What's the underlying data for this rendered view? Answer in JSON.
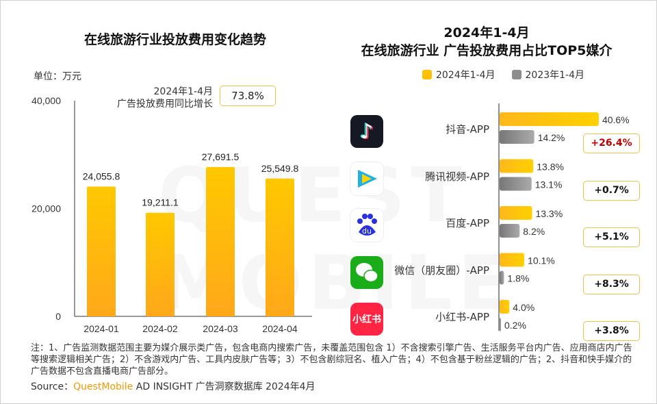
{
  "watermark": "QUEST MOBILE",
  "chart_data": [
    {
      "type": "bar",
      "title": "在线旅游行业投放费用变化趋势",
      "unit_label": "单位：万元",
      "categories": [
        "2024-01",
        "2024-02",
        "2024-03",
        "2024-04"
      ],
      "values": [
        24055.8,
        19211.1,
        27691.5,
        25549.8
      ],
      "value_labels": [
        "24,055.8",
        "19,211.1",
        "27,691.5",
        "25,549.8"
      ],
      "yticks": [
        "0",
        "20,000",
        "40,000"
      ],
      "ylim": [
        0,
        40000
      ],
      "annotation": {
        "label_line1": "2024年1-4月",
        "label_line2": "广告投放费用同比增长",
        "value": "73.8%"
      },
      "colors": {
        "bar": "#ffc000"
      }
    },
    {
      "type": "bar",
      "orientation": "horizontal",
      "title_line1": "2024年1-4月",
      "title_line2": "在线旅游行业 广告投放费用占比TOP5媒介",
      "legend": [
        "2024年1-4月",
        "2023年1-4月"
      ],
      "legend_position": "top",
      "categories": [
        "抖音-APP",
        "腾讯视频-APP",
        "百度-APP",
        "微信（朋友圈）-APP",
        "小红书-APP"
      ],
      "icons": [
        "douyin-icon",
        "tencent-video-icon",
        "baidu-icon",
        "wechat-icon",
        "xiaohongshu-icon"
      ],
      "series": [
        {
          "name": "2024年1-4月",
          "values": [
            40.6,
            13.8,
            13.3,
            10.1,
            4.0
          ],
          "labels": [
            "40.6%",
            "13.8%",
            "13.3%",
            "10.1%",
            "4.0%"
          ],
          "color": "#ffc000"
        },
        {
          "name": "2023年1-4月",
          "values": [
            14.2,
            13.1,
            8.2,
            1.8,
            0.2
          ],
          "labels": [
            "14.2%",
            "13.1%",
            "8.2%",
            "1.8%",
            "0.2%"
          ],
          "color": "#8c8c8c"
        }
      ],
      "changes": [
        "+26.4%",
        "+0.7%",
        "+5.1%",
        "+8.3%",
        "+3.8%"
      ],
      "change_colors": [
        "#c00000",
        "#111111",
        "#111111",
        "#111111",
        "#111111"
      ]
    }
  ],
  "footer": {
    "note": "注：1、广告监测数据范围主要为媒介展示类广告，包含电商内搜索广告，未覆盖范围包含 1）不含搜索引擎广告、生活服务平台内广告、应用商店内广告等搜索逻辑相关广告；2）不含游戏内广告、工具内皮肤广告等；3）不包含剧综冠名、植入广告；4）不包含基于粉丝逻辑的广告；2、抖音和快手媒介的广告数据不包含直播电商广告部分。",
    "source_prefix": "Source：",
    "source_brand": "QuestMobile",
    "source_rest": " AD INSIGHT 广告洞察数据库 2024年4月",
    "brand_color": "#f39800"
  }
}
